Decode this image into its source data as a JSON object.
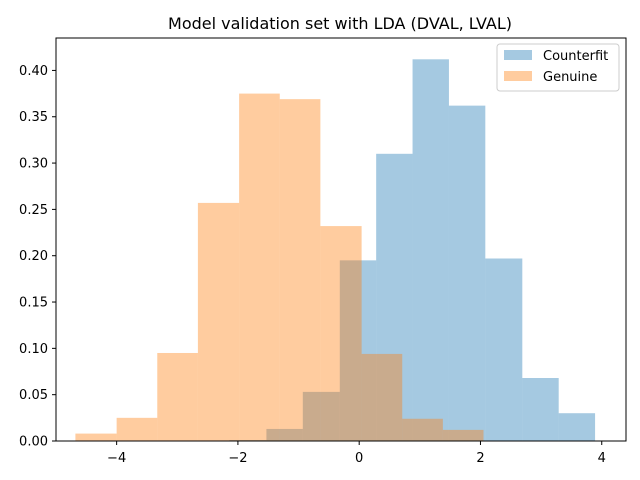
{
  "chart_data": {
    "type": "bar",
    "subtype": "histogram",
    "title": "Model validation set with LDA (DVAL, LVAL)",
    "xlabel": "",
    "ylabel": "",
    "xlim": [
      -5.0,
      4.4
    ],
    "ylim": [
      0.0,
      0.435
    ],
    "x_ticks": [
      -4,
      -2,
      0,
      2,
      4
    ],
    "x_tick_labels": [
      "−4",
      "−2",
      "0",
      "2",
      "4"
    ],
    "y_ticks": [
      0.0,
      0.05,
      0.1,
      0.15,
      0.2,
      0.25,
      0.3,
      0.35,
      0.4
    ],
    "y_tick_labels": [
      "0.00",
      "0.05",
      "0.10",
      "0.15",
      "0.20",
      "0.25",
      "0.30",
      "0.35",
      "0.40"
    ],
    "grid": false,
    "legend_position": "top-right",
    "series": [
      {
        "name": "Counterfit",
        "color": "#1f77b4",
        "alpha": 0.4,
        "bin_edges": [
          -2.14,
          -1.53,
          -0.93,
          -0.32,
          0.28,
          0.88,
          1.48,
          2.08,
          2.69,
          3.29,
          3.89
        ],
        "values": [
          0.001,
          0.013,
          0.053,
          0.195,
          0.31,
          0.412,
          0.362,
          0.197,
          0.068,
          0.03
        ]
      },
      {
        "name": "Genuine",
        "color": "#ff7f0e",
        "alpha": 0.4,
        "bin_edges": [
          -4.68,
          -4.0,
          -3.33,
          -2.66,
          -1.98,
          -1.31,
          -0.64,
          0.04,
          0.71,
          1.38,
          2.05
        ],
        "values": [
          0.008,
          0.025,
          0.095,
          0.257,
          0.375,
          0.369,
          0.232,
          0.094,
          0.024,
          0.012
        ]
      }
    ]
  }
}
